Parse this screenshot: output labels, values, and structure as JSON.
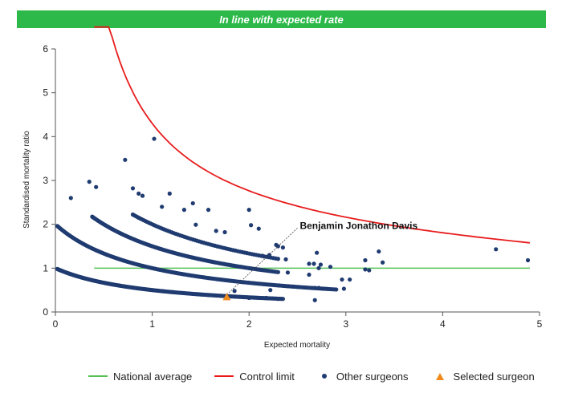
{
  "banner": {
    "text": "In line with expected rate"
  },
  "colors": {
    "banner": "#2db94a",
    "national": "#55c155",
    "control": "#e81c1c",
    "other": "#1f3b70",
    "selected": "#f08a1c",
    "axis": "#555555"
  },
  "legend": {
    "national": "National average",
    "control": "Control limit",
    "other": "Other surgeons",
    "selected": "Selected surgeon"
  },
  "chart_data": {
    "type": "scatter",
    "xlabel": "Expected mortality",
    "ylabel": "Standardised mortality ratio",
    "xlim": [
      0,
      5
    ],
    "ylim": [
      0,
      6
    ],
    "xticks": [
      0,
      1,
      2,
      3,
      4,
      5
    ],
    "yticks": [
      0,
      1,
      2,
      3,
      4,
      5,
      6
    ],
    "national_average": {
      "y": 1,
      "x_range": [
        0.4,
        4.9
      ]
    },
    "control_limit": {
      "x_range": [
        0.4,
        4.9
      ]
    },
    "other_surgeons": {
      "curves": [
        {
          "observed": 1,
          "x_range": [
            0.02,
            2.35
          ],
          "count": 200
        },
        {
          "observed": 2,
          "x_range": [
            0.02,
            2.9
          ],
          "count": 180
        },
        {
          "observed": 3,
          "x_range": [
            0.38,
            2.3
          ],
          "count": 140
        },
        {
          "observed": 4,
          "x_range": [
            0.8,
            2.3
          ],
          "count": 70
        }
      ],
      "points": [
        [
          0.16,
          2.6
        ],
        [
          0.35,
          2.97
        ],
        [
          0.42,
          2.85
        ],
        [
          0.72,
          3.47
        ],
        [
          0.8,
          2.82
        ],
        [
          0.86,
          2.7
        ],
        [
          0.9,
          2.65
        ],
        [
          1.02,
          3.95
        ],
        [
          1.18,
          2.7
        ],
        [
          1.1,
          2.4
        ],
        [
          1.33,
          2.33
        ],
        [
          1.42,
          2.48
        ],
        [
          1.58,
          2.33
        ],
        [
          1.66,
          1.85
        ],
        [
          2.0,
          2.33
        ],
        [
          2.02,
          1.98
        ],
        [
          2.1,
          1.9
        ],
        [
          1.45,
          1.99
        ],
        [
          1.75,
          1.82
        ],
        [
          2.35,
          1.47
        ],
        [
          2.3,
          1.5
        ],
        [
          2.28,
          1.53
        ],
        [
          2.21,
          1.3
        ],
        [
          2.14,
          1.28
        ],
        [
          2.38,
          1.2
        ],
        [
          2.4,
          0.9
        ],
        [
          2.62,
          1.1
        ],
        [
          2.67,
          1.1
        ],
        [
          2.7,
          1.35
        ],
        [
          2.72,
          1.0
        ],
        [
          2.74,
          1.08
        ],
        [
          2.84,
          1.03
        ],
        [
          2.62,
          0.85
        ],
        [
          2.68,
          0.55
        ],
        [
          2.72,
          0.55
        ],
        [
          2.68,
          0.27
        ],
        [
          2.96,
          0.74
        ],
        [
          3.04,
          0.74
        ],
        [
          2.98,
          0.53
        ],
        [
          3.2,
          0.97
        ],
        [
          3.24,
          0.95
        ],
        [
          3.2,
          1.18
        ],
        [
          3.34,
          1.38
        ],
        [
          3.38,
          1.13
        ],
        [
          4.55,
          1.43
        ],
        [
          4.88,
          1.18
        ],
        [
          2.0,
          0.32
        ],
        [
          2.18,
          0.32
        ],
        [
          2.3,
          0.3
        ],
        [
          1.85,
          0.48
        ],
        [
          2.22,
          0.5
        ]
      ]
    },
    "selected_surgeon": {
      "name": "Benjamin Jonathon Davis",
      "x": 1.77,
      "y": 0.34
    }
  }
}
